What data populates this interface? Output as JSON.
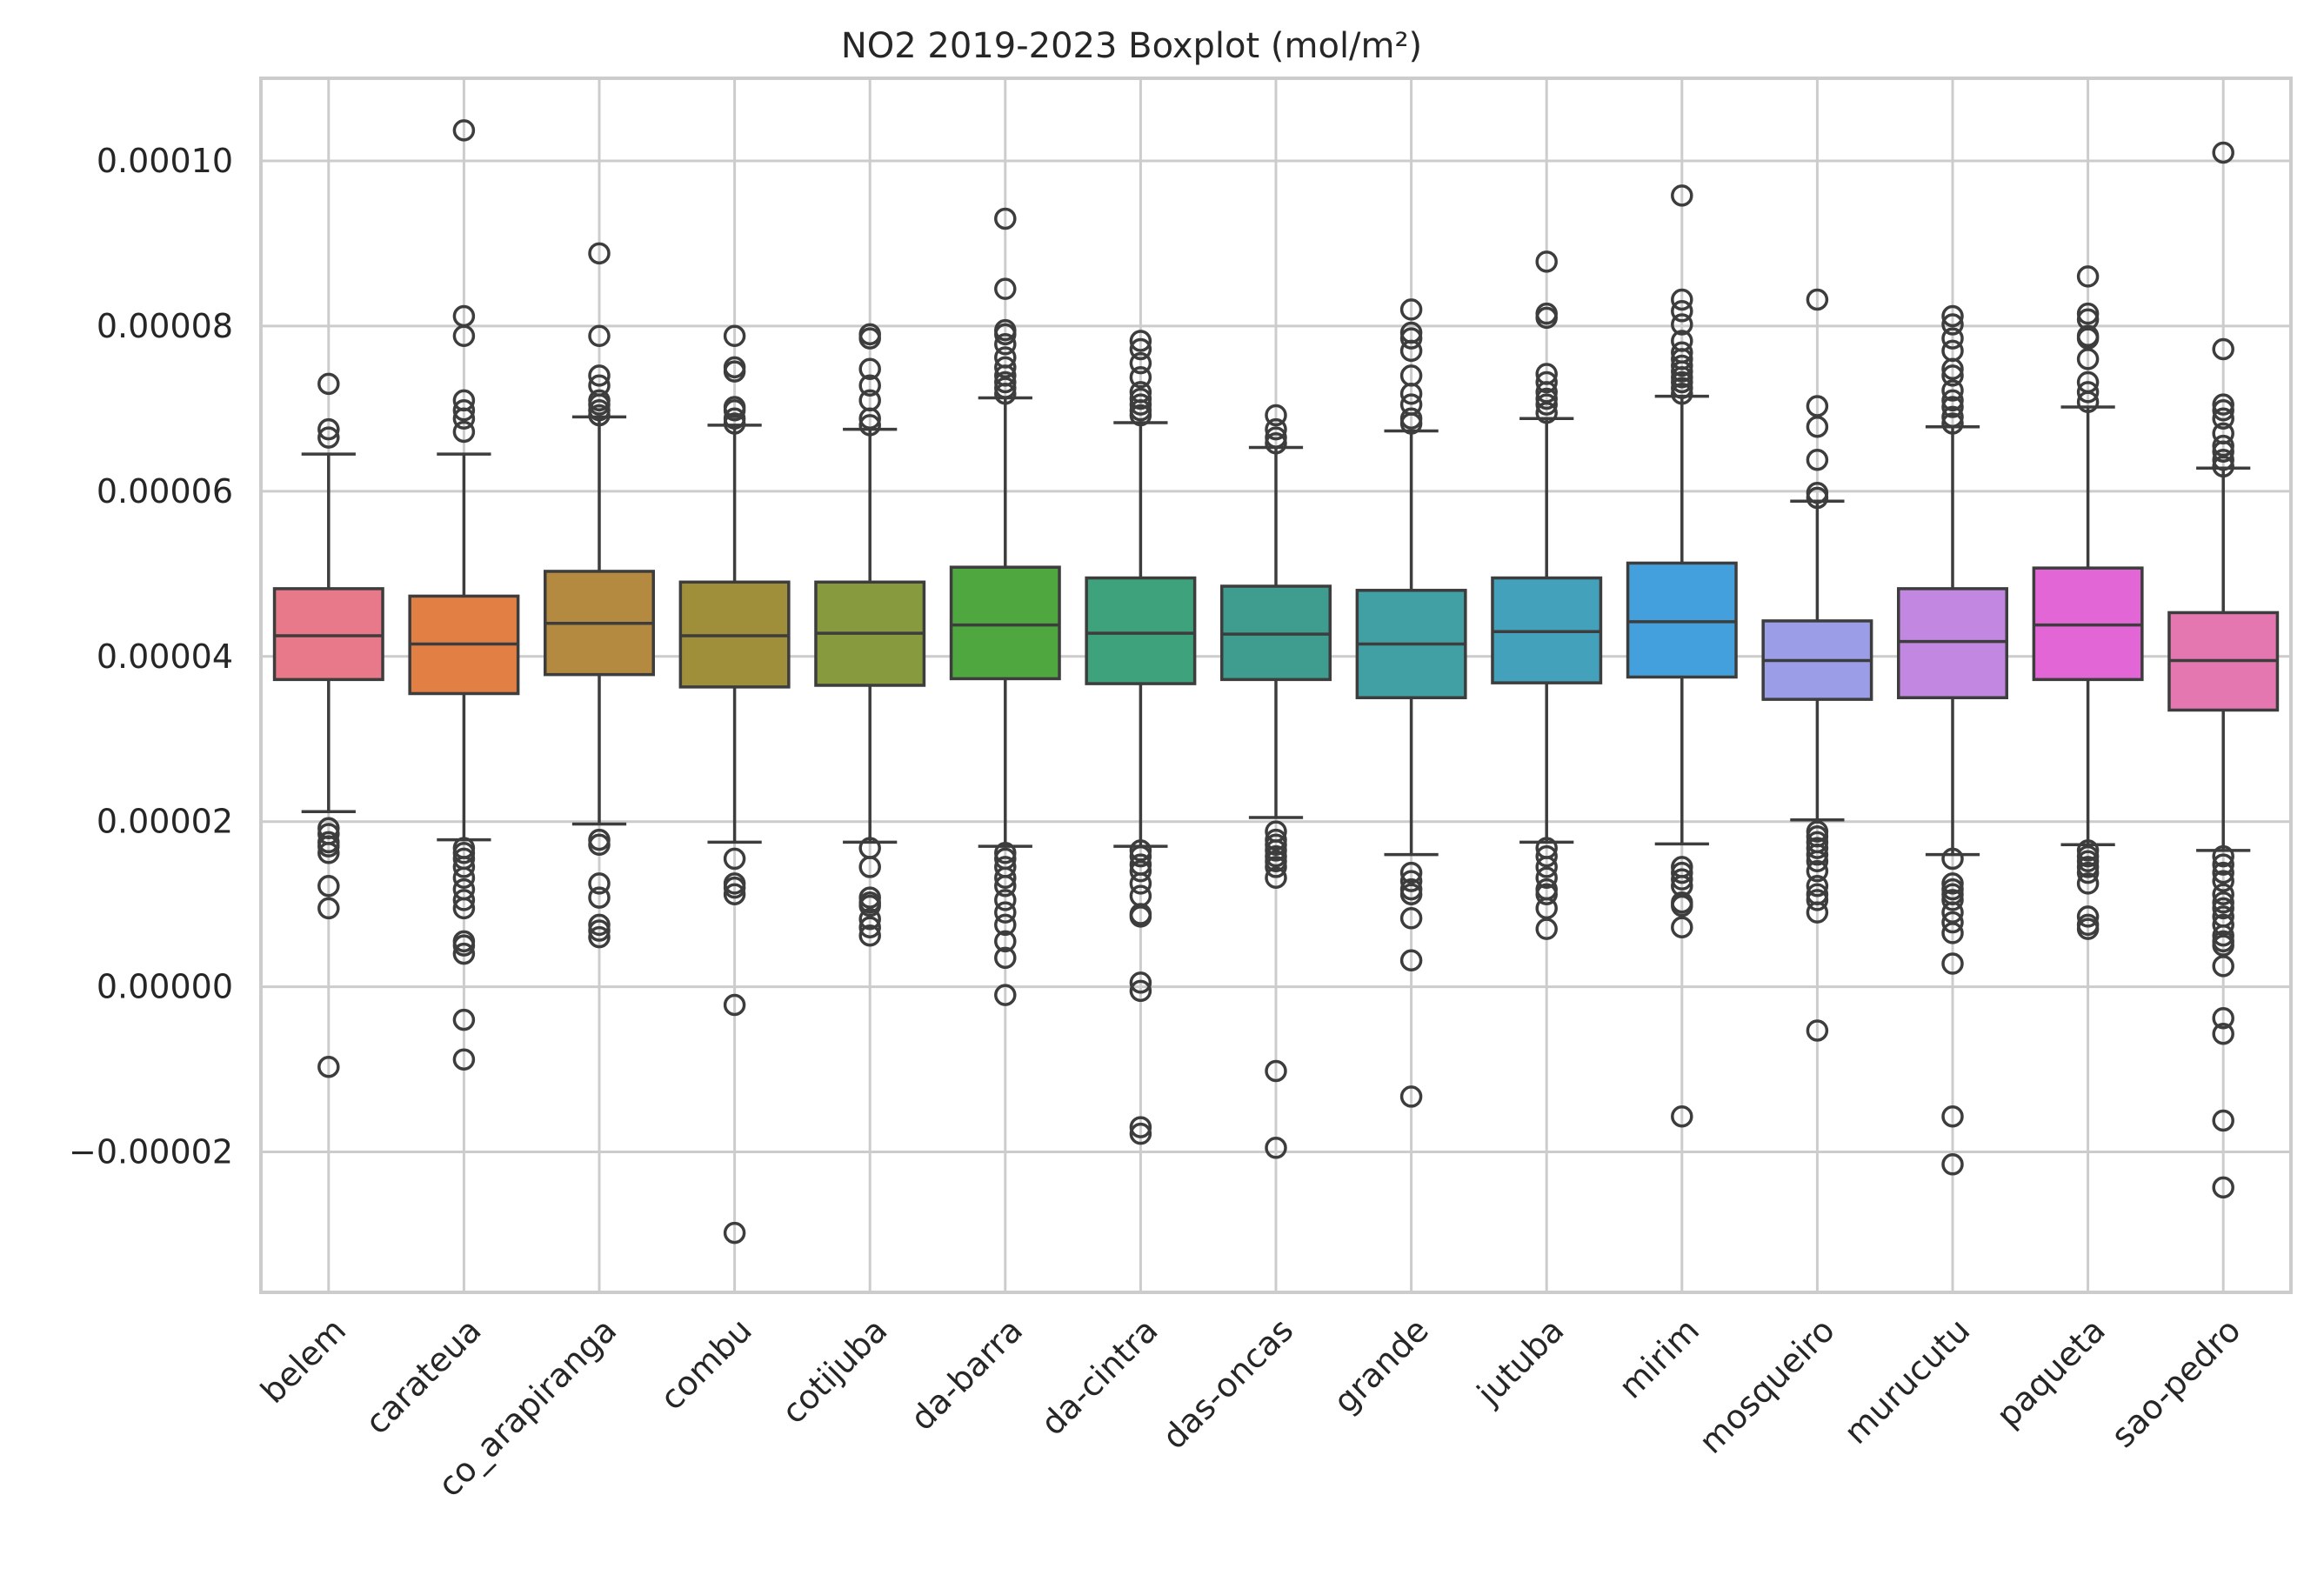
{
  "chart_data": {
    "type": "box",
    "title": "NO2 2019-2023 Boxplot (mol/m²)",
    "xlabel": "",
    "ylabel": "",
    "ylim": [
      -3.7e-05,
      0.00011
    ],
    "y_ticks": [
      {
        "value": 0.0001,
        "label": "0.00010"
      },
      {
        "value": 8e-05,
        "label": "0.00008"
      },
      {
        "value": 6e-05,
        "label": "0.00006"
      },
      {
        "value": 4e-05,
        "label": "0.00004"
      },
      {
        "value": 2e-05,
        "label": "0.00002"
      },
      {
        "value": 0.0,
        "label": "0.00000"
      },
      {
        "value": -2e-05,
        "label": "−0.00002"
      }
    ],
    "grid": true,
    "categories": [
      "belem",
      "carateua",
      "co_arapiranga",
      "combu",
      "cotijuba",
      "da-barra",
      "da-cintra",
      "das-oncas",
      "grande",
      "jutuba",
      "mirim",
      "mosqueiro",
      "murucutu",
      "paqueta",
      "sao-pedro"
    ],
    "colors": [
      "#e8798b",
      "#e27f45",
      "#b48a40",
      "#a08f3a",
      "#879a3e",
      "#4ea83f",
      "#3ea27c",
      "#3f9d8f",
      "#41a0a3",
      "#44a1bc",
      "#44a0dc",
      "#9b9ee6",
      "#c287e0",
      "#e366d6",
      "#e477b0"
    ],
    "boxes": [
      {
        "q1": 3.72e-05,
        "median": 4.25e-05,
        "q3": 4.82e-05,
        "whisker_low": 2.12e-05,
        "whisker_high": 6.45e-05,
        "fliers": [
          7.3e-05,
          6.75e-05,
          6.65e-05,
          1.92e-05,
          1.85e-05,
          1.75e-05,
          1.7e-05,
          1.62e-05,
          1.22e-05,
          9.5e-06,
          -9.7e-06
        ]
      },
      {
        "q1": 3.55e-05,
        "median": 4.15e-05,
        "q3": 4.73e-05,
        "whisker_low": 1.78e-05,
        "whisker_high": 6.45e-05,
        "fliers": [
          0.0001037,
          8.12e-05,
          7.88e-05,
          7.1e-05,
          6.98e-05,
          6.88e-05,
          6.72e-05,
          1.68e-05,
          1.62e-05,
          1.55e-05,
          1.45e-05,
          1.32e-05,
          1.18e-05,
          1.05e-05,
          9.5e-06,
          5.5e-06,
          5e-06,
          4e-06,
          -4e-06,
          -8.8e-06
        ]
      },
      {
        "q1": 3.78e-05,
        "median": 4.4e-05,
        "q3": 5.03e-05,
        "whisker_low": 1.97e-05,
        "whisker_high": 6.9e-05,
        "fliers": [
          8.88e-05,
          7.88e-05,
          7.4e-05,
          7.28e-05,
          7.1e-05,
          7.05e-05,
          6.98e-05,
          6.92e-05,
          1.78e-05,
          1.72e-05,
          1.25e-05,
          1.08e-05,
          7.5e-06,
          6.8e-06,
          6e-06
        ]
      },
      {
        "q1": 3.63e-05,
        "median": 4.25e-05,
        "q3": 4.9e-05,
        "whisker_low": 1.75e-05,
        "whisker_high": 6.8e-05,
        "fliers": [
          7.88e-05,
          7.5e-05,
          7.45e-05,
          7.02e-05,
          6.98e-05,
          6.88e-05,
          6.82e-05,
          1.55e-05,
          1.25e-05,
          1.2e-05,
          1.12e-05,
          -2.2e-06,
          -2.98e-05
        ]
      },
      {
        "q1": 3.65e-05,
        "median": 4.28e-05,
        "q3": 4.9e-05,
        "whisker_low": 1.75e-05,
        "whisker_high": 6.75e-05,
        "fliers": [
          7.9e-05,
          7.85e-05,
          7.48e-05,
          7.28e-05,
          7.1e-05,
          6.88e-05,
          6.8e-05,
          1.68e-05,
          1.45e-05,
          1.08e-05,
          1.02e-05,
          9.8e-06,
          8.2e-06,
          7.2e-06,
          6.2e-06
        ]
      },
      {
        "q1": 3.73e-05,
        "median": 4.38e-05,
        "q3": 5.08e-05,
        "whisker_low": 1.7e-05,
        "whisker_high": 7.13e-05,
        "fliers": [
          9.3e-05,
          8.45e-05,
          7.95e-05,
          7.9e-05,
          7.78e-05,
          7.62e-05,
          7.5e-05,
          7.4e-05,
          7.32e-05,
          7.25e-05,
          7.18e-05,
          1.62e-05,
          1.55e-05,
          1.45e-05,
          1.32e-05,
          1.22e-05,
          1.05e-05,
          9e-06,
          7.5e-06,
          5.5e-06,
          3.5e-06,
          -1e-06
        ]
      },
      {
        "q1": 3.67e-05,
        "median": 4.28e-05,
        "q3": 4.95e-05,
        "whisker_low": 1.7e-05,
        "whisker_high": 6.83e-05,
        "fliers": [
          7.82e-05,
          7.72e-05,
          7.55e-05,
          7.38e-05,
          7.2e-05,
          7.12e-05,
          7.05e-05,
          6.98e-05,
          6.92e-05,
          1.65e-05,
          1.58e-05,
          1.48e-05,
          1.4e-05,
          1.25e-05,
          1.1e-05,
          8.8e-06,
          8.5e-06,
          5e-07,
          -5e-07,
          -1.7e-05,
          -1.78e-05
        ]
      },
      {
        "q1": 3.72e-05,
        "median": 4.27e-05,
        "q3": 4.85e-05,
        "whisker_low": 2.05e-05,
        "whisker_high": 6.53e-05,
        "fliers": [
          6.92e-05,
          6.75e-05,
          6.65e-05,
          6.58e-05,
          1.88e-05,
          1.78e-05,
          1.72e-05,
          1.65e-05,
          1.58e-05,
          1.52e-05,
          1.45e-05,
          1.32e-05,
          -1.02e-05,
          -1.95e-05
        ]
      },
      {
        "q1": 3.5e-05,
        "median": 4.15e-05,
        "q3": 4.8e-05,
        "whisker_low": 1.6e-05,
        "whisker_high": 6.73e-05,
        "fliers": [
          8.2e-05,
          7.92e-05,
          7.85e-05,
          7.7e-05,
          7.4e-05,
          7.18e-05,
          7.05e-05,
          6.88e-05,
          6.82e-05,
          1.38e-05,
          1.28e-05,
          1.18e-05,
          1.12e-05,
          8.3e-06,
          3.2e-06,
          -1.33e-05
        ]
      },
      {
        "q1": 3.68e-05,
        "median": 4.3e-05,
        "q3": 4.95e-05,
        "whisker_low": 1.75e-05,
        "whisker_high": 6.88e-05,
        "fliers": [
          8.78e-05,
          8.15e-05,
          8.1e-05,
          7.42e-05,
          7.32e-05,
          7.2e-05,
          7.12e-05,
          7.05e-05,
          6.95e-05,
          1.68e-05,
          1.58e-05,
          1.45e-05,
          1.32e-05,
          1.18e-05,
          1.12e-05,
          9.5e-06,
          7e-06
        ]
      },
      {
        "q1": 3.75e-05,
        "median": 4.42e-05,
        "q3": 5.13e-05,
        "whisker_low": 1.73e-05,
        "whisker_high": 7.15e-05,
        "fliers": [
          9.58e-05,
          8.32e-05,
          8.18e-05,
          8.02e-05,
          7.82e-05,
          7.68e-05,
          7.6e-05,
          7.52e-05,
          7.45e-05,
          7.38e-05,
          7.32e-05,
          7.25e-05,
          7.18e-05,
          1.45e-05,
          1.38e-05,
          1.3e-05,
          1.22e-05,
          1.02e-05,
          9.8e-06,
          7.2e-06,
          -1.57e-05
        ]
      },
      {
        "q1": 3.48e-05,
        "median": 3.95e-05,
        "q3": 4.43e-05,
        "whisker_low": 2.02e-05,
        "whisker_high": 5.88e-05,
        "fliers": [
          8.32e-05,
          7.03e-05,
          6.78e-05,
          6.38e-05,
          5.98e-05,
          5.92e-05,
          1.88e-05,
          1.82e-05,
          1.75e-05,
          1.68e-05,
          1.6e-05,
          1.52e-05,
          1.4e-05,
          1.22e-05,
          1.12e-05,
          1.05e-05,
          9e-06,
          -5.3e-06
        ]
      },
      {
        "q1": 3.5e-05,
        "median": 4.18e-05,
        "q3": 4.82e-05,
        "whisker_low": 1.6e-05,
        "whisker_high": 6.78e-05,
        "fliers": [
          8.12e-05,
          8.02e-05,
          7.85e-05,
          7.7e-05,
          7.48e-05,
          7.4e-05,
          7.22e-05,
          7.1e-05,
          7.02e-05,
          6.9e-05,
          6.82e-05,
          1.55e-05,
          1.25e-05,
          1.18e-05,
          1.12e-05,
          1.05e-05,
          9e-06,
          7.8e-06,
          6.5e-06,
          2.8e-06,
          -1.57e-05,
          -2.15e-05
        ]
      },
      {
        "q1": 3.72e-05,
        "median": 4.38e-05,
        "q3": 5.07e-05,
        "whisker_low": 1.72e-05,
        "whisker_high": 7.02e-05,
        "fliers": [
          8.6e-05,
          8.15e-05,
          8.08e-05,
          7.88e-05,
          7.85e-05,
          7.6e-05,
          7.32e-05,
          7.2e-05,
          7.08e-05,
          1.65e-05,
          1.58e-05,
          1.52e-05,
          1.45e-05,
          1.38e-05,
          1.25e-05,
          8.5e-06,
          7.5e-06,
          7e-06
        ]
      },
      {
        "q1": 3.35e-05,
        "median": 3.95e-05,
        "q3": 4.53e-05,
        "whisker_low": 1.65e-05,
        "whisker_high": 6.28e-05,
        "fliers": [
          0.000101,
          7.72e-05,
          7.05e-05,
          6.98e-05,
          6.88e-05,
          6.7e-05,
          6.55e-05,
          6.48e-05,
          6.38e-05,
          6.3e-05,
          1.58e-05,
          1.48e-05,
          1.38e-05,
          1.28e-05,
          1.12e-05,
          1.02e-05,
          9.5e-06,
          8.5e-06,
          7.5e-06,
          6.2e-06,
          5.5e-06,
          5e-06,
          2.5e-06,
          -3.8e-06,
          -5.7e-06,
          -1.62e-05,
          -2.43e-05
        ]
      }
    ]
  }
}
